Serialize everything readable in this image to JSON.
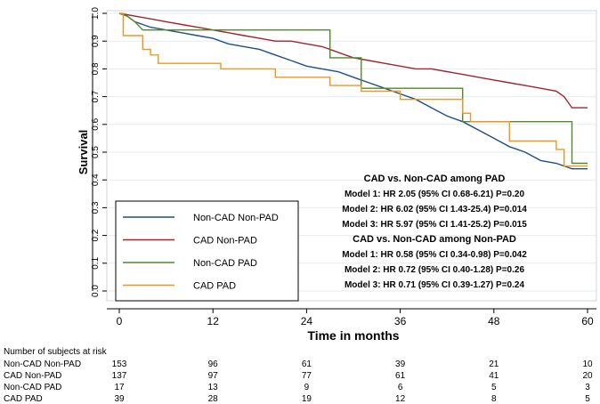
{
  "chart_data": {
    "type": "line",
    "title": "",
    "xlabel": "Time in months",
    "ylabel": "Survival",
    "xlim": [
      0,
      61
    ],
    "ylim": [
      0,
      1.0
    ],
    "xticks": [
      "0",
      "12",
      "24",
      "36",
      "48",
      "60"
    ],
    "yticks": [
      "0.0",
      "0.1",
      "0.2",
      "0.3",
      "0.4",
      "0.5",
      "0.6",
      "0.7",
      "0.8",
      "0.9",
      "1.0"
    ],
    "grid": true,
    "legend_position": "bottom-left",
    "series": [
      {
        "name": "Non-CAD Non-PAD",
        "color": "#1f4e8c",
        "x": [
          0,
          1,
          2,
          3,
          4,
          6,
          8,
          10,
          12,
          14,
          16,
          18,
          20,
          22,
          24,
          26,
          28,
          30,
          32,
          34,
          36,
          38,
          40,
          42,
          44,
          46,
          48,
          50,
          52,
          54,
          56,
          58,
          60
        ],
        "y": [
          1.0,
          0.99,
          0.97,
          0.96,
          0.95,
          0.94,
          0.93,
          0.92,
          0.91,
          0.89,
          0.88,
          0.87,
          0.85,
          0.83,
          0.81,
          0.8,
          0.79,
          0.77,
          0.75,
          0.73,
          0.71,
          0.69,
          0.66,
          0.63,
          0.61,
          0.58,
          0.55,
          0.52,
          0.5,
          0.47,
          0.46,
          0.44,
          0.44
        ]
      },
      {
        "name": "CAD Non-PAD",
        "color": "#a0262e",
        "x": [
          0,
          2,
          4,
          6,
          8,
          10,
          12,
          14,
          16,
          18,
          20,
          22,
          24,
          26,
          28,
          30,
          32,
          34,
          36,
          38,
          40,
          42,
          44,
          46,
          48,
          50,
          52,
          54,
          56,
          57,
          58,
          60
        ],
        "y": [
          1.0,
          0.99,
          0.98,
          0.97,
          0.96,
          0.95,
          0.94,
          0.93,
          0.92,
          0.91,
          0.9,
          0.9,
          0.89,
          0.88,
          0.86,
          0.84,
          0.83,
          0.82,
          0.81,
          0.8,
          0.8,
          0.79,
          0.78,
          0.77,
          0.76,
          0.75,
          0.74,
          0.73,
          0.72,
          0.7,
          0.66,
          0.66
        ]
      },
      {
        "name": "Non-CAD PAD",
        "color": "#4f8a2c",
        "x": [
          0,
          1,
          2,
          3,
          27,
          27,
          31,
          31,
          44,
          44,
          58,
          58,
          60
        ],
        "y": [
          1.0,
          0.99,
          0.97,
          0.94,
          0.94,
          0.84,
          0.84,
          0.73,
          0.73,
          0.61,
          0.61,
          0.46,
          0.46
        ],
        "step": true
      },
      {
        "name": "CAD PAD",
        "color": "#f0961e",
        "x": [
          0,
          0.5,
          0.5,
          3,
          3,
          4,
          4,
          5,
          5,
          7,
          7,
          9,
          9,
          13,
          13,
          20,
          20,
          27,
          27,
          31,
          31,
          36,
          36,
          44,
          44,
          45,
          45,
          50,
          50,
          56,
          56,
          57,
          57,
          60
        ],
        "y": [
          1.0,
          1.0,
          0.92,
          0.92,
          0.87,
          0.87,
          0.85,
          0.85,
          0.82,
          0.82,
          0.82,
          0.82,
          0.82,
          0.82,
          0.8,
          0.8,
          0.77,
          0.77,
          0.74,
          0.74,
          0.72,
          0.72,
          0.69,
          0.69,
          0.64,
          0.64,
          0.61,
          0.61,
          0.54,
          0.54,
          0.51,
          0.51,
          0.45,
          0.45
        ],
        "step": true
      }
    ],
    "annotations": [
      "CAD vs. Non-CAD among PAD",
      "Model 1: HR 2.05 (95% CI 0.68-6.21) P=0.20",
      "Model 2: HR 6.02 (95% CI 1.43-25.4) P=0.014",
      "Model 3: HR 5.97 (95% CI 1.41-25.2) P=0.015",
      "CAD vs. Non-CAD among Non-PAD",
      "Model 1: HR 0.58 (95% CI 0.34-0.98) P=0.042",
      "Model 2: HR 0.72 (95% CI 0.40-1.28) P=0.26",
      "Model 3: HR 0.71 (95% CI 0.39-1.27) P=0.24"
    ],
    "risk_table": {
      "title": "Number of subjects at risk",
      "timepoints": [
        0,
        12,
        24,
        36,
        48,
        60
      ],
      "rows": [
        {
          "label": "Non-CAD Non-PAD",
          "counts": [
            "153",
            "96",
            "61",
            "39",
            "21",
            "10"
          ]
        },
        {
          "label": "CAD Non-PAD",
          "counts": [
            "137",
            "97",
            "77",
            "61",
            "41",
            "20"
          ]
        },
        {
          "label": "Non-CAD PAD",
          "counts": [
            "17",
            "13",
            "9",
            "6",
            "5",
            "3"
          ]
        },
        {
          "label": "CAD PAD",
          "counts": [
            "39",
            "28",
            "19",
            "12",
            "8",
            "5"
          ]
        }
      ]
    }
  }
}
